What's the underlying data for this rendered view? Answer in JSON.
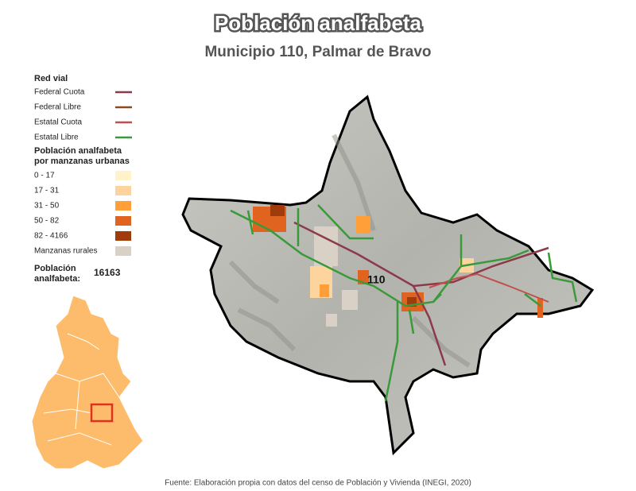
{
  "header": {
    "title": "Población analfabeta",
    "subtitle": "Municipio 110, Palmar de Bravo"
  },
  "legend": {
    "roads_title": "Red vial",
    "roads": [
      {
        "label": "Federal Cuota",
        "color": "#8b3a4a"
      },
      {
        "label": "Federal Libre",
        "color": "#8b4a22"
      },
      {
        "label": "Estatal Cuota",
        "color": "#c0504d"
      },
      {
        "label": "Estatal Libre",
        "color": "#3a9a3a"
      }
    ],
    "population_title": [
      "Población analfabeta",
      "por manzanas urbanas"
    ],
    "classes": [
      {
        "label": "0 - 17",
        "color": "#fff3cc"
      },
      {
        "label": "17 - 31",
        "color": "#fdd49e"
      },
      {
        "label": "31 - 50",
        "color": "#fe9f3a"
      },
      {
        "label": "50 - 82",
        "color": "#e0641f"
      },
      {
        "label": "82 - 4166",
        "color": "#a03c0c"
      },
      {
        "label": "Manzanas rurales",
        "color": "#d9d0c6"
      }
    ],
    "total_label": [
      "Población",
      "analfabeta:"
    ],
    "total_value": 16163
  },
  "map": {
    "municipality_label": "110"
  },
  "footer": {
    "source": "Fuente: Elaboración propia con datos del censo de Población y Vivienda (INEGI, 2020)"
  }
}
